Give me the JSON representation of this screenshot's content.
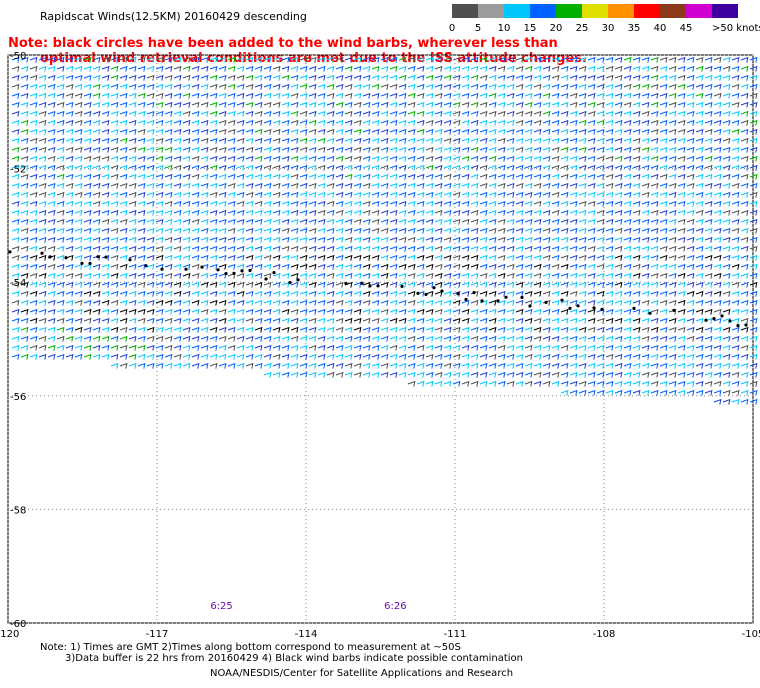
{
  "header": {
    "title": "Rapidscat Winds(12.5KM) 20160429 descending",
    "note_line1": "Note: black circles have been added to the wind barbs, wherever less than",
    "note_line2": "optimal wind retrieval conditions are met due to the ISS attitude changes."
  },
  "legend": {
    "ticks": [
      "0",
      "5",
      "10",
      "15",
      "20",
      "25",
      "30",
      "35",
      "40",
      "45",
      ">50 knots"
    ],
    "colors": [
      "#505050",
      "#9c9c9c",
      "#00c8ff",
      "#0060ff",
      "#00b000",
      "#e0e000",
      "#ff9000",
      "#ff0000",
      "#8b3a1a",
      "#d000d0",
      "#4000a0"
    ]
  },
  "chart_data": {
    "type": "scatter",
    "title": "Rapidscat Winds(12.5KM) 20160429 descending",
    "x_ticks": [
      "-120",
      "-117",
      "-114",
      "-111",
      "-108",
      "-105"
    ],
    "y_ticks": [
      "-50",
      "-52",
      "-54",
      "-56",
      "-58",
      "-60"
    ],
    "xlim": [
      -120,
      -105
    ],
    "ylim": [
      -60,
      -50
    ],
    "grid": true,
    "legend_placement": "top-right",
    "series": [
      {
        "name": "wind barbs",
        "color": "#0060ff"
      }
    ],
    "time_labels": [
      {
        "lon": -115.7,
        "text": "6:25"
      },
      {
        "lon": -112.2,
        "text": "6:26"
      }
    ]
  },
  "footer": {
    "notes_line1": "Note: 1) Times are GMT 2)Times along bottom correspond to measurement at ~50S",
    "notes_line2": "3)Data buffer is 22 hrs from 20160429 4) Black wind barbs indicate possible contamination",
    "credit": "NOAA/NESDIS/Center for Satellite Applications and Research"
  }
}
